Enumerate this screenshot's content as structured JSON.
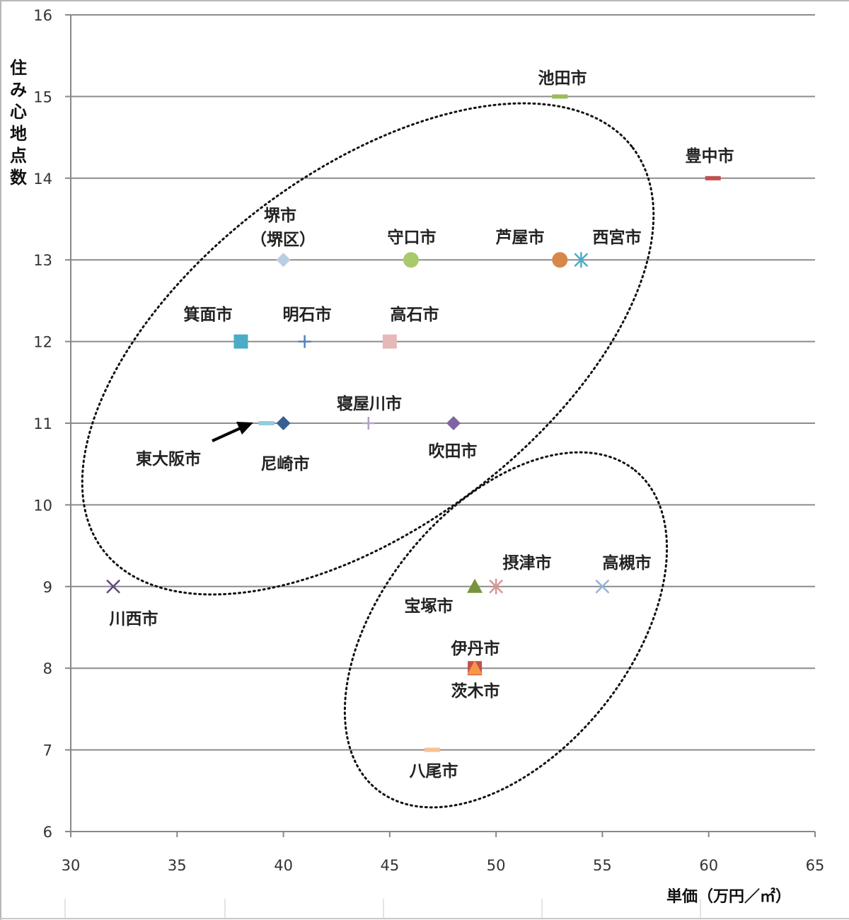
{
  "chart_data": {
    "type": "scatter",
    "xlabel": "単価（万円／㎡）",
    "ylabel": "住み心地点数",
    "xlim": [
      30,
      65
    ],
    "ylim": [
      6,
      16
    ],
    "x_ticks": [
      30,
      35,
      40,
      45,
      50,
      55,
      60,
      65
    ],
    "y_ticks": [
      6,
      7,
      8,
      9,
      10,
      11,
      12,
      13,
      14,
      15,
      16
    ],
    "grid": "horizontal",
    "points": [
      {
        "label": "池田市",
        "x": 53,
        "y": 15,
        "color": "#9bbb59",
        "marker": "dash"
      },
      {
        "label": "豊中市",
        "x": 60.2,
        "y": 14,
        "color": "#c0504d",
        "marker": "dash"
      },
      {
        "label": "堺市（堺区）",
        "x": 40,
        "y": 13,
        "color": "#b9cde5",
        "marker": "diamond"
      },
      {
        "label": "守口市",
        "x": 46,
        "y": 13,
        "color": "#a9c96a",
        "marker": "circle"
      },
      {
        "label": "芦屋市",
        "x": 53,
        "y": 13,
        "color": "#d8874b",
        "marker": "circle"
      },
      {
        "label": "西宮市",
        "x": 54,
        "y": 13,
        "color": "#4bacc6",
        "marker": "asterisk"
      },
      {
        "label": "箕面市",
        "x": 38,
        "y": 12,
        "color": "#4bacc6",
        "marker": "square"
      },
      {
        "label": "明石市",
        "x": 41,
        "y": 12,
        "color": "#4f81bd",
        "marker": "plus"
      },
      {
        "label": "高石市",
        "x": 45,
        "y": 12,
        "color": "#e6b9b8",
        "marker": "square"
      },
      {
        "label": "東大阪市",
        "x": 39.2,
        "y": 11,
        "color": "#93cddd",
        "marker": "dash"
      },
      {
        "label": "尼崎市",
        "x": 40,
        "y": 11,
        "color": "#376092",
        "marker": "diamond"
      },
      {
        "label": "寝屋川市",
        "x": 44,
        "y": 11,
        "color": "#b3a2c7",
        "marker": "plus"
      },
      {
        "label": "吹田市",
        "x": 48,
        "y": 11,
        "color": "#8064a2",
        "marker": "diamond"
      },
      {
        "label": "川西市",
        "x": 32,
        "y": 9,
        "color": "#604a7b",
        "marker": "x"
      },
      {
        "label": "宝塚市",
        "x": 49,
        "y": 9,
        "color": "#77933c",
        "marker": "triangle"
      },
      {
        "label": "摂津市",
        "x": 50,
        "y": 9,
        "color": "#d99694",
        "marker": "asterisk"
      },
      {
        "label": "高槻市",
        "x": 55,
        "y": 9,
        "color": "#95b3d7",
        "marker": "x"
      },
      {
        "label": "伊丹市",
        "x": 49,
        "y": 8,
        "color": "#c0504d",
        "marker": "square"
      },
      {
        "label": "茨木市",
        "x": 49,
        "y": 8,
        "color": "#f79646",
        "marker": "triangle"
      },
      {
        "label": "八尾市",
        "x": 47,
        "y": 7,
        "color": "#fac090",
        "marker": "dash"
      }
    ]
  },
  "colors": {
    "axis": "#888888",
    "grid": "#8c8c8c",
    "ellipse": "#111111",
    "arrow": "#000000"
  }
}
